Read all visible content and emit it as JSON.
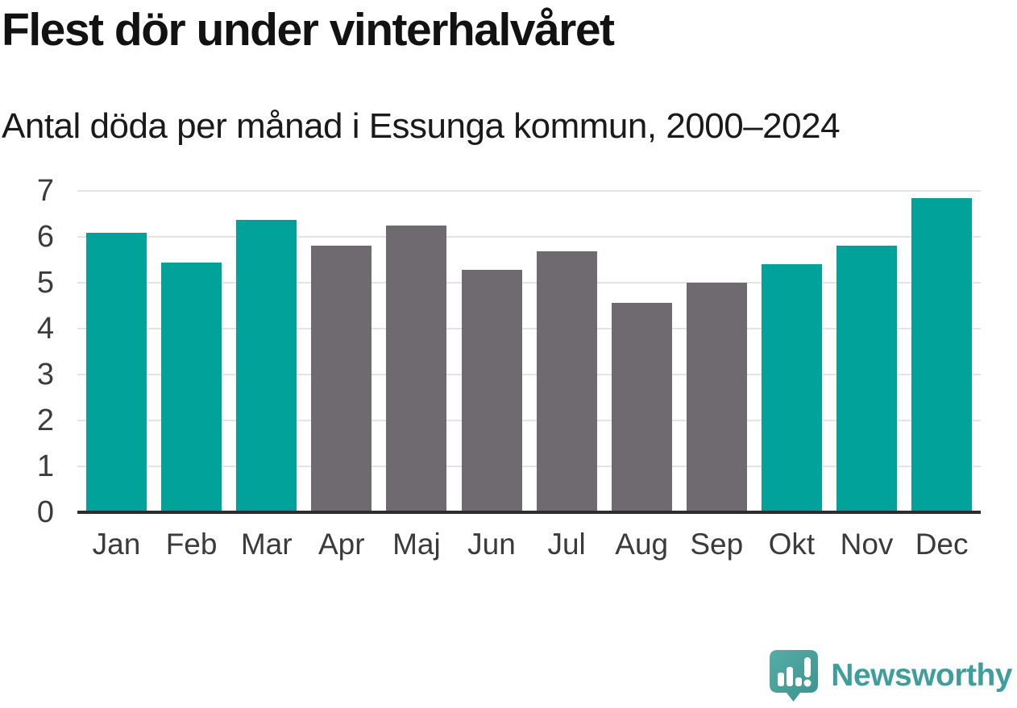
{
  "header": {
    "title": "Flest dör under vinterhalvåret",
    "subtitle": "Antal döda per månad i Essunga kommun, 2000–2024"
  },
  "chart_data": {
    "type": "bar",
    "title": "Flest dör under vinterhalvåret",
    "subtitle": "Antal döda per månad i Essunga kommun, 2000–2024",
    "categories": [
      "Jan",
      "Feb",
      "Mar",
      "Apr",
      "Maj",
      "Jun",
      "Jul",
      "Aug",
      "Sep",
      "Okt",
      "Nov",
      "Dec"
    ],
    "values": [
      6.08,
      5.44,
      6.36,
      5.8,
      6.24,
      5.28,
      5.68,
      4.56,
      5.0,
      5.4,
      5.8,
      6.84
    ],
    "bar_colors": [
      "#00a29a",
      "#00a29a",
      "#00a29a",
      "#6e6a70",
      "#6e6a70",
      "#6e6a70",
      "#6e6a70",
      "#6e6a70",
      "#6e6a70",
      "#00a29a",
      "#00a29a",
      "#00a29a"
    ],
    "highlight_color": "#00a29a",
    "neutral_color": "#6e6a70",
    "xlabel": "",
    "ylabel": "",
    "ylim": [
      0,
      7
    ],
    "yticks": [
      0,
      1,
      2,
      3,
      4,
      5,
      6,
      7
    ],
    "grid": "horizontal",
    "legend": "none"
  },
  "footer": {
    "brand": "Newsworthy",
    "logo_icon": "newsworthy-speech-bubble-chart-icon",
    "brand_color": "#3f9e9b",
    "icon_color": "#48a39e"
  }
}
